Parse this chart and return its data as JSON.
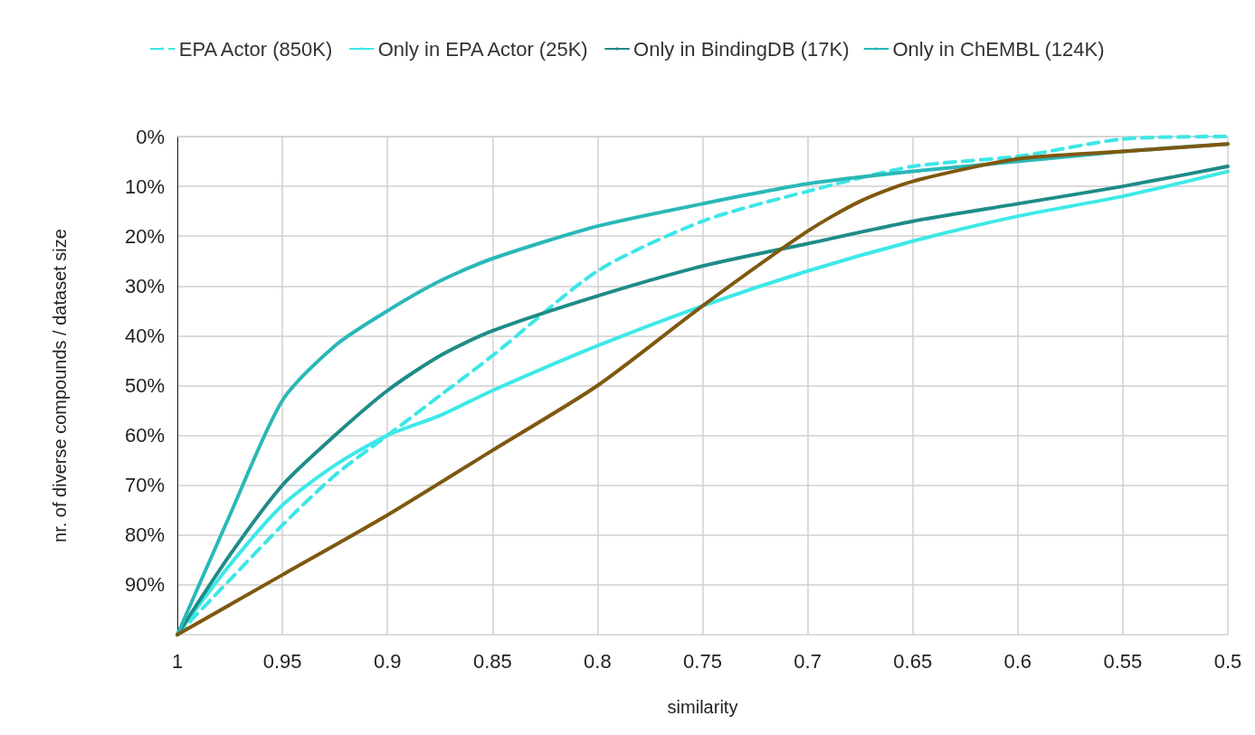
{
  "chart_data": {
    "type": "line",
    "xlabel": "similarity",
    "ylabel": "nr. of diverse compounds / dataset size",
    "legend": "top",
    "grid": true,
    "marker": "none",
    "xlim": [
      1,
      0.5
    ],
    "xticks": [
      1,
      0.95,
      0.9,
      0.85,
      0.8,
      0.75,
      0.7,
      0.65,
      0.6,
      0.55,
      0.5
    ],
    "ylim": [
      100,
      0
    ],
    "yticks": [
      {
        "value": 0,
        "label": "0%"
      },
      {
        "value": 10,
        "label": "10%"
      },
      {
        "value": 20,
        "label": "20%"
      },
      {
        "value": 30,
        "label": "30%"
      },
      {
        "value": 40,
        "label": "40%"
      },
      {
        "value": 50,
        "label": "50%"
      },
      {
        "value": 60,
        "label": "60%"
      },
      {
        "value": 70,
        "label": "70%"
      },
      {
        "value": 80,
        "label": "80%"
      },
      {
        "value": 90,
        "label": "90%"
      },
      {
        "value": 100,
        "label": null
      }
    ],
    "x": [
      1,
      0.975,
      0.95,
      0.925,
      0.9,
      0.875,
      0.85,
      0.8,
      0.75,
      0.7,
      0.65,
      0.6,
      0.55,
      0.5
    ],
    "series": [
      {
        "name": "EPA Actor (850K)",
        "color": "#3de6e6",
        "line_style": "dashed",
        "values": [
          100,
          89,
          78,
          68,
          60,
          52,
          44,
          27,
          17,
          11,
          6,
          4,
          0.5,
          0
        ]
      },
      {
        "name": "Only in EPA Actor (25K)",
        "color": "#3ee8e8",
        "line_style": "solid",
        "values": [
          100,
          86,
          74,
          66,
          60,
          56,
          51,
          42,
          34,
          27,
          21,
          16,
          12,
          7
        ]
      },
      {
        "name": "Only in BindingDB (17K)",
        "color": "#1e8c88",
        "line_style": "solid",
        "values": [
          100,
          84,
          70,
          60,
          51,
          44,
          39,
          32,
          26,
          21.5,
          17,
          13.5,
          10,
          6
        ]
      },
      {
        "name": "Only in ChEMBL (124K)",
        "color": "#2ab8b8",
        "line_style": "solid",
        "values": [
          100,
          76,
          53,
          42,
          35,
          29,
          24.5,
          18,
          13.5,
          9.5,
          7,
          5,
          3,
          1.5
        ]
      },
      {
        "color": "#7f5810",
        "line_style": "solid",
        "x": [
          1,
          0.95,
          0.9,
          0.85,
          0.8,
          0.75,
          0.7,
          0.675,
          0.65,
          0.6,
          0.55,
          0.5
        ],
        "values": [
          100,
          88,
          76,
          63,
          50,
          34,
          19,
          13,
          9,
          4.5,
          3,
          1.5
        ]
      }
    ]
  }
}
